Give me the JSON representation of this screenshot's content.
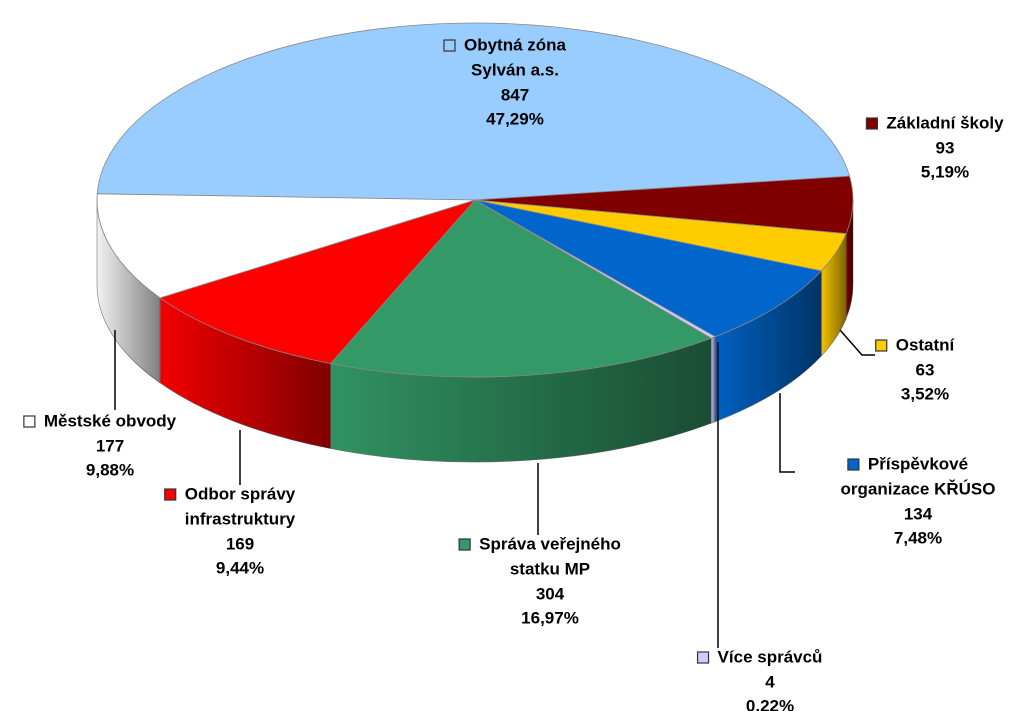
{
  "chart_data": {
    "type": "pie3d",
    "categories": [
      [
        "Obytná zóna",
        "Sylván a.s."
      ],
      [
        "Základní  školy"
      ],
      [
        "Ostatní"
      ],
      [
        "Příspěvkové",
        "organizace KŘÚSO"
      ],
      [
        "Více správců"
      ],
      [
        "Správa veřejného",
        "statku MP"
      ],
      [
        "Odbor správy",
        "infrastruktury"
      ],
      [
        "Městské  obvody"
      ]
    ],
    "values": [
      847,
      93,
      63,
      134,
      4,
      304,
      169,
      177
    ],
    "percent": [
      47.29,
      5.19,
      3.52,
      7.48,
      0.22,
      16.97,
      9.44,
      9.88
    ],
    "percent_labels": [
      "47,29%",
      "5,19%",
      "3,52%",
      "7,48%",
      "0,22%",
      "16,97%",
      "9,44%",
      "9,88%"
    ],
    "colors": [
      "#99ccff",
      "#800000",
      "#ffcc00",
      "#0066cc",
      "#ccccff",
      "#339966",
      "#ff0000",
      "#ffffff"
    ]
  }
}
